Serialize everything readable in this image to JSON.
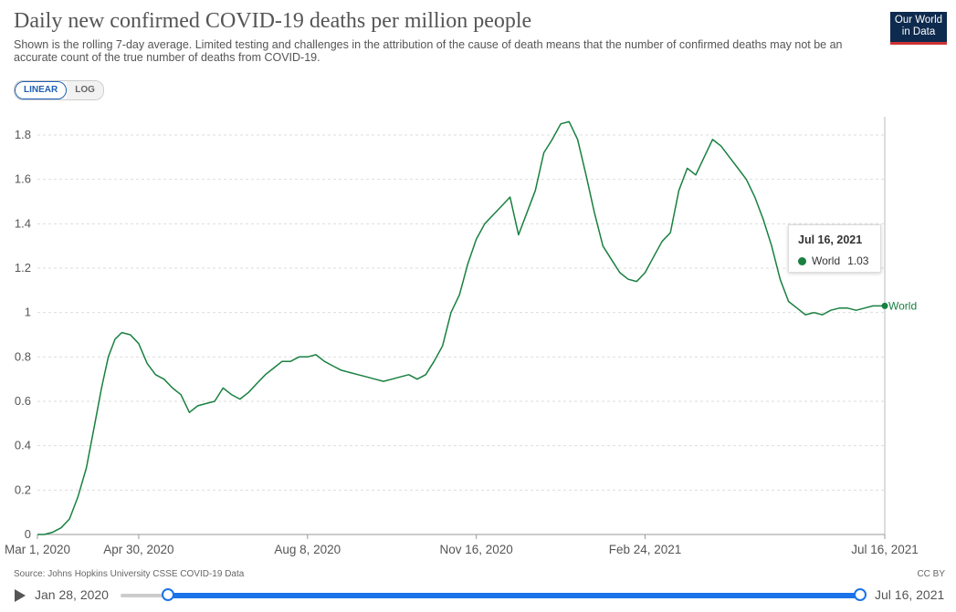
{
  "header": {
    "title": "Daily new confirmed COVID-19 deaths per million people",
    "subtitle": "Shown is the rolling 7-day average. Limited testing and challenges in the attribution of the cause of death means that the number of confirmed deaths may not be an accurate count of the true number of deaths from COVID-19.",
    "logo_line1": "Our World",
    "logo_line2": "in Data"
  },
  "controls": {
    "linear_label": "LINEAR",
    "log_label": "LOG",
    "active": "linear"
  },
  "tooltip": {
    "date": "Jul 16, 2021",
    "series": "World",
    "value": "1.03"
  },
  "footer": {
    "source": "Source: Johns Hopkins University CSSE COVID-19 Data",
    "license": "CC BY"
  },
  "timeline": {
    "start": "Jan 28, 2020",
    "end": "Jul 16, 2021"
  },
  "colors": {
    "series": "#198040",
    "grid": "#dddddd",
    "axis_text": "#555555"
  },
  "chart_data": {
    "type": "line",
    "title": "Daily new confirmed COVID-19 deaths per million people",
    "xlabel": "",
    "ylabel": "",
    "x_range": [
      "2020-03-01",
      "2021-07-16"
    ],
    "ylim": [
      0,
      1.8
    ],
    "yticks": [
      0,
      0.2,
      0.4,
      0.6,
      0.8,
      1,
      1.2,
      1.4,
      1.6,
      1.8
    ],
    "ytick_labels": [
      "0",
      "0.2",
      "0.4",
      "0.6",
      "0.8",
      "1",
      "1.2",
      "1.4",
      "1.6",
      "1.8"
    ],
    "xticks": [
      "2020-03-01",
      "2020-04-30",
      "2020-08-08",
      "2020-11-16",
      "2021-02-24",
      "2021-07-16"
    ],
    "xtick_labels": [
      "Mar 1, 2020",
      "Apr 30, 2020",
      "Aug 8, 2020",
      "Nov 16, 2020",
      "Feb 24, 2021",
      "Jul 16, 2021"
    ],
    "grid": true,
    "legend": "end-of-line label",
    "series": [
      {
        "name": "World",
        "x": [
          "2020-03-01",
          "2020-03-05",
          "2020-03-10",
          "2020-03-15",
          "2020-03-20",
          "2020-03-25",
          "2020-03-30",
          "2020-04-04",
          "2020-04-08",
          "2020-04-12",
          "2020-04-16",
          "2020-04-20",
          "2020-04-25",
          "2020-04-30",
          "2020-05-05",
          "2020-05-10",
          "2020-05-15",
          "2020-05-20",
          "2020-05-25",
          "2020-05-30",
          "2020-06-04",
          "2020-06-09",
          "2020-06-14",
          "2020-06-19",
          "2020-06-24",
          "2020-06-29",
          "2020-07-04",
          "2020-07-09",
          "2020-07-14",
          "2020-07-19",
          "2020-07-24",
          "2020-07-29",
          "2020-08-03",
          "2020-08-08",
          "2020-08-13",
          "2020-08-18",
          "2020-08-23",
          "2020-08-28",
          "2020-09-02",
          "2020-09-07",
          "2020-09-12",
          "2020-09-17",
          "2020-09-22",
          "2020-09-27",
          "2020-10-02",
          "2020-10-07",
          "2020-10-12",
          "2020-10-17",
          "2020-10-22",
          "2020-10-27",
          "2020-11-01",
          "2020-11-06",
          "2020-11-11",
          "2020-11-16",
          "2020-11-21",
          "2020-11-26",
          "2020-12-01",
          "2020-12-06",
          "2020-12-11",
          "2020-12-16",
          "2020-12-21",
          "2020-12-26",
          "2020-12-31",
          "2021-01-05",
          "2021-01-10",
          "2021-01-15",
          "2021-01-20",
          "2021-01-25",
          "2021-01-30",
          "2021-02-04",
          "2021-02-09",
          "2021-02-14",
          "2021-02-19",
          "2021-02-24",
          "2021-03-01",
          "2021-03-06",
          "2021-03-11",
          "2021-03-16",
          "2021-03-21",
          "2021-03-26",
          "2021-03-31",
          "2021-04-05",
          "2021-04-10",
          "2021-04-15",
          "2021-04-20",
          "2021-04-25",
          "2021-04-30",
          "2021-05-05",
          "2021-05-10",
          "2021-05-15",
          "2021-05-20",
          "2021-05-25",
          "2021-05-30",
          "2021-06-04",
          "2021-06-09",
          "2021-06-14",
          "2021-06-19",
          "2021-06-24",
          "2021-06-29",
          "2021-07-04",
          "2021-07-09",
          "2021-07-16"
        ],
        "y": [
          0.0,
          0.0,
          0.01,
          0.03,
          0.07,
          0.17,
          0.3,
          0.5,
          0.66,
          0.8,
          0.88,
          0.91,
          0.9,
          0.86,
          0.77,
          0.72,
          0.7,
          0.66,
          0.63,
          0.55,
          0.58,
          0.59,
          0.6,
          0.66,
          0.63,
          0.61,
          0.64,
          0.68,
          0.72,
          0.75,
          0.78,
          0.78,
          0.8,
          0.8,
          0.81,
          0.78,
          0.76,
          0.74,
          0.73,
          0.72,
          0.71,
          0.7,
          0.69,
          0.7,
          0.71,
          0.72,
          0.7,
          0.72,
          0.78,
          0.85,
          1.0,
          1.08,
          1.22,
          1.33,
          1.4,
          1.44,
          1.48,
          1.52,
          1.35,
          1.45,
          1.55,
          1.72,
          1.78,
          1.85,
          1.86,
          1.78,
          1.62,
          1.45,
          1.3,
          1.24,
          1.18,
          1.15,
          1.14,
          1.18,
          1.25,
          1.32,
          1.36,
          1.55,
          1.65,
          1.62,
          1.7,
          1.78,
          1.75,
          1.7,
          1.65,
          1.6,
          1.52,
          1.42,
          1.3,
          1.15,
          1.05,
          1.02,
          0.99,
          1.0,
          0.99,
          1.01,
          1.02,
          1.02,
          1.01,
          1.02,
          1.03,
          1.03
        ]
      }
    ]
  }
}
